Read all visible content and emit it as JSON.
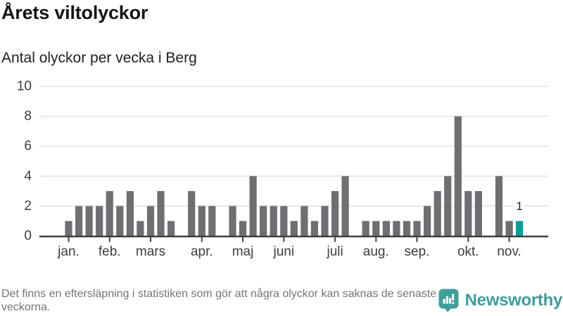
{
  "header": {
    "title": "Årets viltolyckor",
    "subtitle": "Antal olyckor per vecka i Berg"
  },
  "footer": {
    "disclaimer": "Det finns en eftersläpning i statistiken som gör att några olyckor kan saknas de senaste veckorna.",
    "brand_name": "Newsworthy"
  },
  "colors": {
    "bar": "#6e6e73",
    "highlight_bar": "#00a29b",
    "brand_teal": "#3e9e98",
    "axis": "#414141",
    "grid": "#e7e7e9",
    "axis_label": "#3d3d3d",
    "value_label": "#222222"
  },
  "chart_data": {
    "type": "bar",
    "title": "Årets viltolyckor",
    "subtitle": "Antal olyckor per vecka i Berg",
    "x_unit": "vecka (week of year)",
    "ylabel": "",
    "xlabel": "",
    "ylim": [
      0,
      10
    ],
    "yticks": [
      0,
      2,
      4,
      6,
      8,
      10
    ],
    "grid": true,
    "legend": false,
    "values": [
      1,
      2,
      2,
      2,
      3,
      2,
      3,
      1,
      2,
      3,
      1,
      0,
      3,
      2,
      2,
      0,
      2,
      1,
      4,
      2,
      2,
      2,
      1,
      2,
      1,
      2,
      3,
      4,
      0,
      1,
      1,
      1,
      1,
      1,
      1,
      2,
      3,
      4,
      8,
      3,
      3,
      0,
      4,
      1,
      1
    ],
    "month_tick_labels": [
      "jan.",
      "feb.",
      "mars",
      "apr.",
      "maj",
      "juni",
      "juli",
      "aug.",
      "sep.",
      "okt.",
      "nov."
    ],
    "month_tick_week_index": [
      0,
      4,
      8,
      13,
      17,
      21,
      26,
      30,
      34,
      39,
      43
    ],
    "highlight_index": 44,
    "highlight_value_label": "1"
  }
}
